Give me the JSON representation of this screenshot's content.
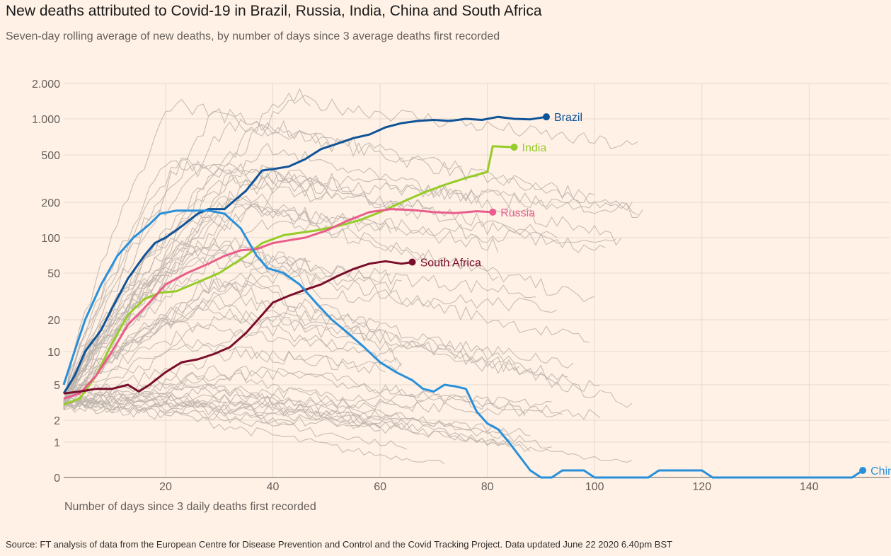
{
  "title": "New deaths attributed to Covid-19 in Brazil, Russia, India, China and South Africa",
  "subtitle": "Seven-day rolling average of new deaths, by number of days since 3 average deaths first recorded",
  "source": "Source: FT analysis of data from the European Centre for Disease Prevention and Control and the Covid Tracking Project. Data updated June 22 2020 6.40pm BST",
  "chart_data": {
    "type": "line",
    "xlabel": "Number of days since 3 daily deaths first recorded",
    "ylabel": "",
    "xlim": [
      1,
      155
    ],
    "ylim": [
      0,
      2000
    ],
    "scale": "symlog",
    "grid": true,
    "x_ticks": [
      20,
      40,
      60,
      80,
      100,
      120,
      140
    ],
    "y_ticks": [
      0,
      1,
      2,
      5,
      10,
      20,
      50,
      100,
      200,
      500,
      1000,
      2000
    ],
    "y_tick_labels": [
      "0",
      "1",
      "2",
      "5",
      "10",
      "20",
      "50",
      "100",
      "200",
      "500",
      "1.000",
      "2.000"
    ],
    "series": [
      {
        "name": "Brazil",
        "color": "#0f5499",
        "points": [
          [
            1,
            4
          ],
          [
            3,
            6
          ],
          [
            5,
            10
          ],
          [
            8,
            16
          ],
          [
            10,
            25
          ],
          [
            13,
            45
          ],
          [
            16,
            70
          ],
          [
            18,
            90
          ],
          [
            20,
            100
          ],
          [
            23,
            125
          ],
          [
            26,
            160
          ],
          [
            28,
            175
          ],
          [
            31,
            175
          ],
          [
            33,
            210
          ],
          [
            35,
            250
          ],
          [
            38,
            370
          ],
          [
            40,
            380
          ],
          [
            43,
            400
          ],
          [
            46,
            460
          ],
          [
            49,
            560
          ],
          [
            52,
            620
          ],
          [
            55,
            690
          ],
          [
            58,
            740
          ],
          [
            61,
            850
          ],
          [
            64,
            920
          ],
          [
            67,
            960
          ],
          [
            70,
            980
          ],
          [
            73,
            960
          ],
          [
            76,
            1000
          ],
          [
            79,
            980
          ],
          [
            82,
            1040
          ],
          [
            85,
            1000
          ],
          [
            88,
            990
          ],
          [
            91,
            1040
          ]
        ]
      },
      {
        "name": "India",
        "color": "#96cc28",
        "points": [
          [
            1,
            3
          ],
          [
            4,
            3.5
          ],
          [
            7,
            6
          ],
          [
            10,
            12
          ],
          [
            13,
            22
          ],
          [
            16,
            30
          ],
          [
            19,
            34
          ],
          [
            22,
            35
          ],
          [
            25,
            40
          ],
          [
            30,
            50
          ],
          [
            35,
            70
          ],
          [
            38,
            90
          ],
          [
            42,
            105
          ],
          [
            45,
            110
          ],
          [
            48,
            115
          ],
          [
            52,
            125
          ],
          [
            56,
            140
          ],
          [
            60,
            165
          ],
          [
            64,
            200
          ],
          [
            68,
            240
          ],
          [
            72,
            280
          ],
          [
            76,
            320
          ],
          [
            80,
            360
          ],
          [
            81,
            590
          ],
          [
            85,
            580
          ]
        ]
      },
      {
        "name": "Russia",
        "color": "#e95d8c",
        "points": [
          [
            1,
            3.5
          ],
          [
            4,
            4
          ],
          [
            7,
            6
          ],
          [
            10,
            10
          ],
          [
            13,
            18
          ],
          [
            16,
            25
          ],
          [
            20,
            40
          ],
          [
            24,
            50
          ],
          [
            28,
            60
          ],
          [
            31,
            70
          ],
          [
            34,
            78
          ],
          [
            37,
            80
          ],
          [
            40,
            90
          ],
          [
            43,
            95
          ],
          [
            46,
            100
          ],
          [
            50,
            115
          ],
          [
            54,
            140
          ],
          [
            58,
            165
          ],
          [
            62,
            175
          ],
          [
            66,
            172
          ],
          [
            70,
            165
          ],
          [
            74,
            162
          ],
          [
            78,
            168
          ],
          [
            81,
            165
          ]
        ]
      },
      {
        "name": "South Africa",
        "color": "#7a0e2c",
        "points": [
          [
            1,
            4
          ],
          [
            4,
            4.2
          ],
          [
            7,
            4.5
          ],
          [
            10,
            4.5
          ],
          [
            13,
            5
          ],
          [
            15,
            4.2
          ],
          [
            17,
            5
          ],
          [
            20,
            6.5
          ],
          [
            23,
            8
          ],
          [
            26,
            8.5
          ],
          [
            29,
            9.5
          ],
          [
            32,
            11
          ],
          [
            35,
            15
          ],
          [
            38,
            22
          ],
          [
            40,
            28
          ],
          [
            43,
            32
          ],
          [
            46,
            36
          ],
          [
            49,
            40
          ],
          [
            52,
            47
          ],
          [
            55,
            54
          ],
          [
            58,
            60
          ],
          [
            61,
            63
          ],
          [
            64,
            60
          ],
          [
            66,
            62
          ]
        ]
      },
      {
        "name": "China",
        "color": "#2890db",
        "points": [
          [
            1,
            5
          ],
          [
            3,
            10
          ],
          [
            5,
            20
          ],
          [
            8,
            40
          ],
          [
            11,
            70
          ],
          [
            14,
            100
          ],
          [
            17,
            130
          ],
          [
            19,
            160
          ],
          [
            22,
            170
          ],
          [
            25,
            170
          ],
          [
            28,
            170
          ],
          [
            31,
            160
          ],
          [
            34,
            120
          ],
          [
            37,
            70
          ],
          [
            39,
            55
          ],
          [
            42,
            50
          ],
          [
            45,
            40
          ],
          [
            48,
            28
          ],
          [
            51,
            20
          ],
          [
            54,
            15
          ],
          [
            57,
            11
          ],
          [
            60,
            8
          ],
          [
            63,
            6.5
          ],
          [
            66,
            5.5
          ],
          [
            68,
            4.5
          ],
          [
            70,
            4.2
          ],
          [
            72,
            5
          ],
          [
            74,
            4.8
          ],
          [
            76,
            4.5
          ],
          [
            78,
            2.5
          ],
          [
            80,
            1.8
          ],
          [
            82,
            1.5
          ],
          [
            84,
            1
          ],
          [
            86,
            0.6
          ],
          [
            88,
            0.2
          ],
          [
            90,
            0
          ],
          [
            92,
            0
          ],
          [
            94,
            0.2
          ],
          [
            98,
            0.2
          ],
          [
            100,
            0
          ],
          [
            110,
            0
          ],
          [
            112,
            0.2
          ],
          [
            120,
            0.2
          ],
          [
            122,
            0
          ],
          [
            146,
            0
          ],
          [
            148,
            0
          ],
          [
            150,
            0.2
          ]
        ]
      }
    ]
  }
}
